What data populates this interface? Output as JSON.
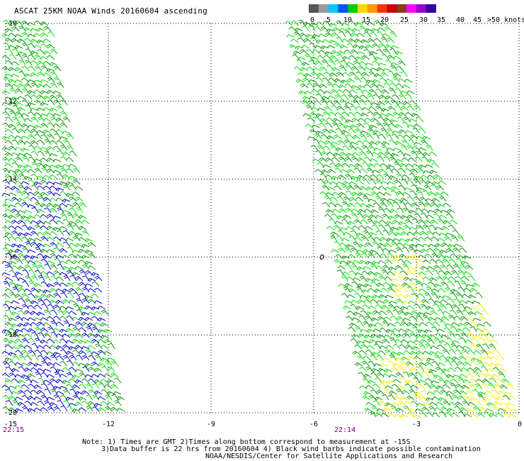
{
  "title": "ASCAT 25KM NOAA Winds 20160604 ascending",
  "legend": {
    "labels": [
      "0",
      "5",
      "10",
      "15",
      "20",
      "25",
      "30",
      "35",
      "40",
      "45",
      ">50 knots"
    ],
    "colors": [
      "#555555",
      "#9a9a9a",
      "#00c8ff",
      "#0055ff",
      "#00cc00",
      "#ffd700",
      "#ff9900",
      "#ff3300",
      "#cc0000",
      "#8b3a1a",
      "#ff00ff",
      "#9400d3",
      "#330099"
    ]
  },
  "map": {
    "lon_ticks": [
      "-15",
      "-12",
      "-9",
      "-6",
      "-3",
      "0"
    ],
    "lat_ticks": [
      "-10",
      "-12",
      "-14",
      "-16",
      "-18",
      "-20"
    ],
    "lon_range": [
      -15,
      0
    ],
    "lat_range": [
      -20,
      -10
    ],
    "grid": "dotted",
    "time_labels": [
      "22:15",
      "22:14"
    ],
    "barb_colors": {
      "light": "#00dd00",
      "dark": "#009900",
      "blue": "#0000cc",
      "yellow": "#ffee00"
    },
    "island_label": "o"
  },
  "notes": {
    "line1": "Note: 1) Times are GMT 2)Times along bottom correspond to measurement at -15S",
    "line2": "3)Data buffer is 22 hrs from 20160604 4) Black wind barbs indicate possible contamination",
    "line3": "NOAA/NESDIS/Center for Satellite Applications and Research"
  }
}
